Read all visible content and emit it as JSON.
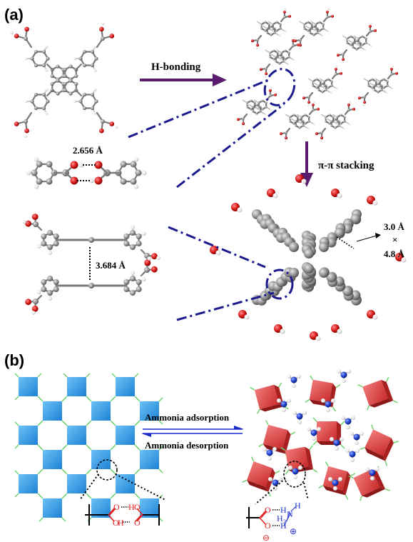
{
  "panels": {
    "a_label": "(a)",
    "b_label": "(b)"
  },
  "panel_a": {
    "arrow_h_bonding": "H-bonding",
    "arrow_pi_stacking": "π-π stacking",
    "distance_h_bond": "2.656 Å",
    "distance_stack": "3.684 Å",
    "pore_width": "3.0 Å",
    "pore_times": "×",
    "pore_height": "4.8 Å"
  },
  "panel_b": {
    "adsorption_label": "Ammonia adsorption",
    "desorption_label": "Ammonia desorption",
    "left_bond_O1": "O",
    "left_bond_H1": "H",
    "left_bond_O2": "O",
    "left_bond_O3": "O",
    "left_bond_H2": "H",
    "left_bond_O4": "O",
    "right_H_N": "H",
    "right_N": "N",
    "right_H2N": "H",
    "right_Hsub": "2",
    "right_O_top": "O",
    "right_H_top": "H",
    "right_O_bot": "O",
    "right_H_bot": "H",
    "plus_sign": "⊕",
    "minus_sign": "⊖"
  },
  "colors": {
    "purple_arrow": "#5a1a6e",
    "navy_dash": "#1a1a8c",
    "block_blue": "#3aa0e8",
    "block_red": "#e04848",
    "oxygen_red": "#d11a1a",
    "carbon_grey": "#8a8a8a",
    "nitrogen_blue": "#1a3ccc",
    "hbond_red": "#e02020",
    "amine_blue": "#2233cc",
    "linker_green": "#6fd26f"
  }
}
